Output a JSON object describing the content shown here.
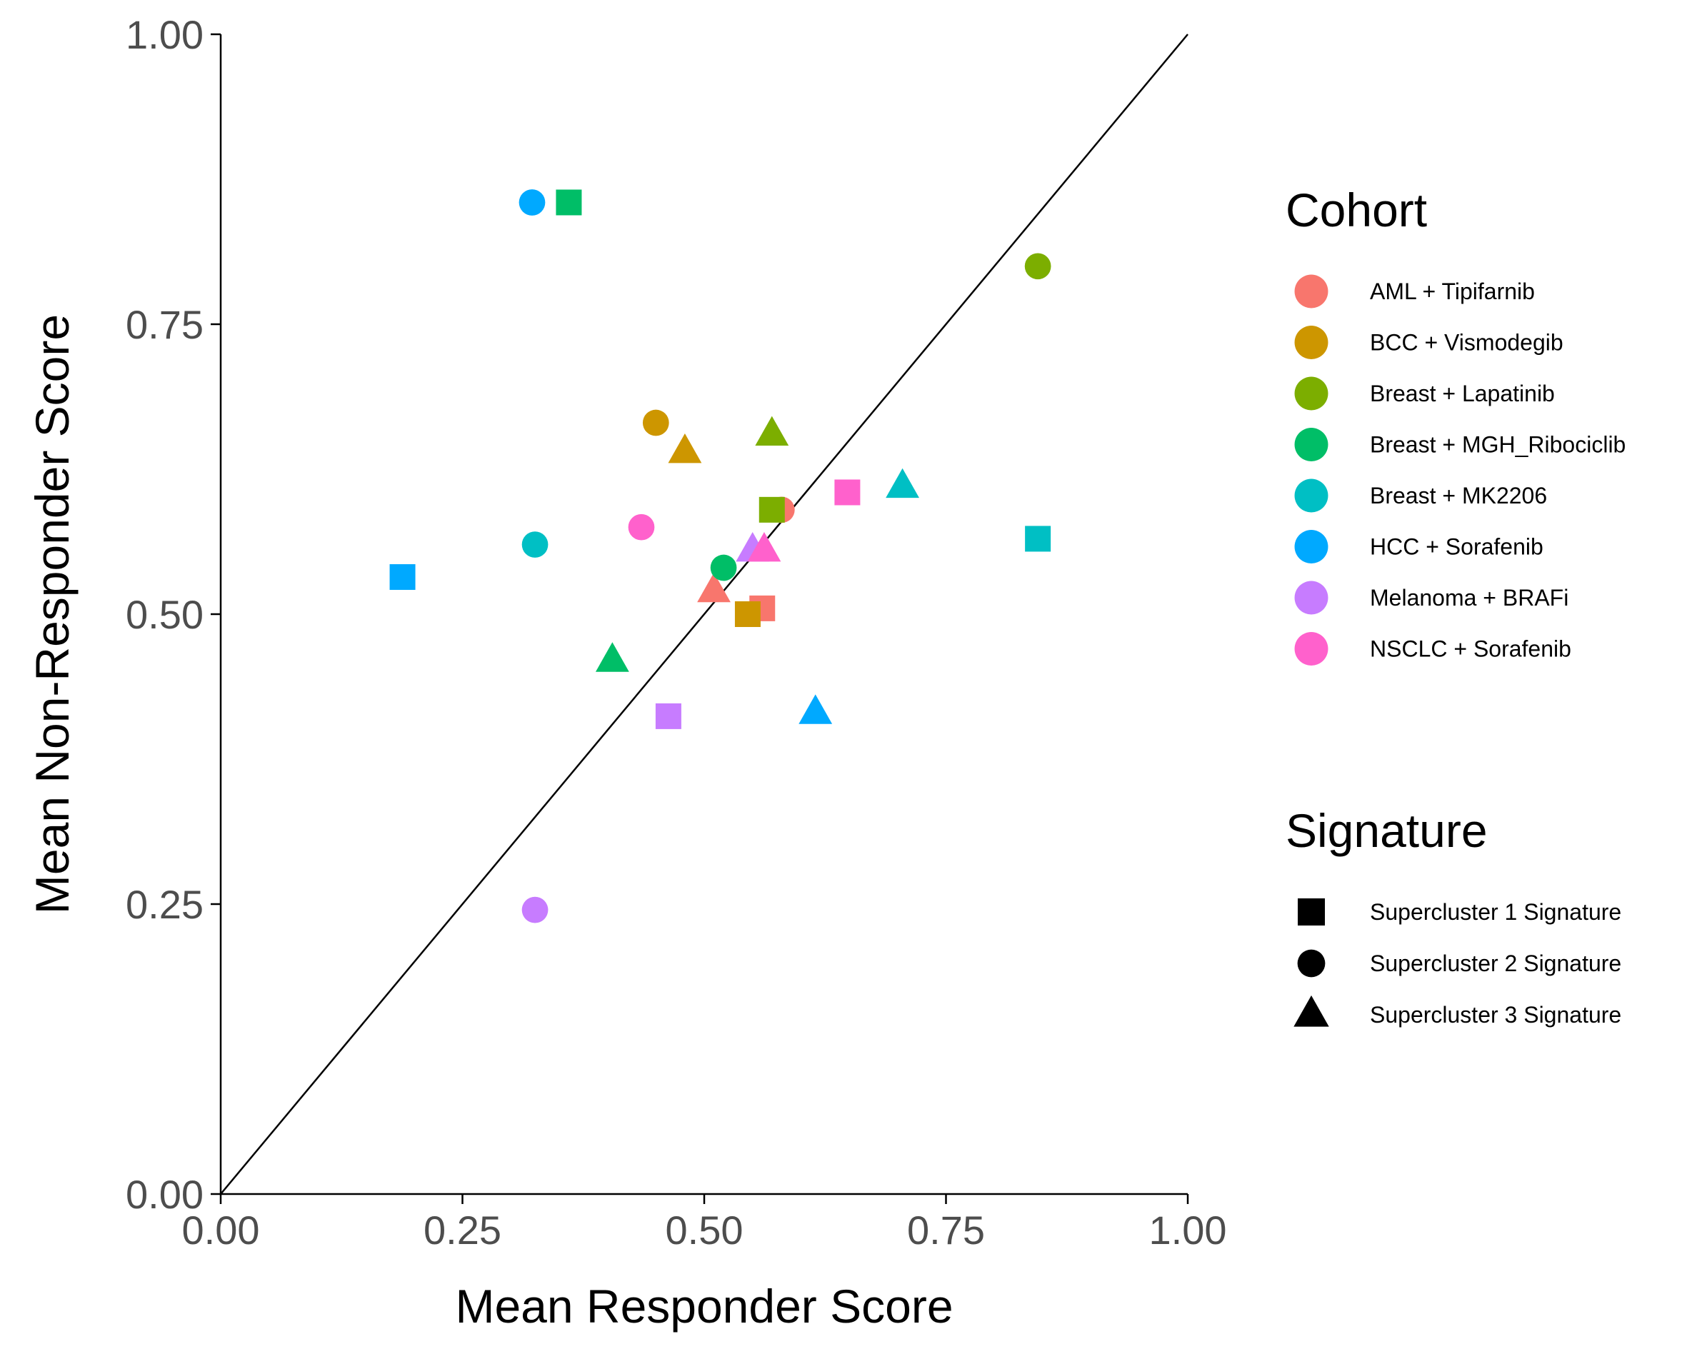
{
  "chart_data": {
    "type": "scatter",
    "xlabel": "Mean Responder Score",
    "ylabel": "Mean Non-Responder Score",
    "xlim": [
      0,
      1
    ],
    "ylim": [
      0,
      1
    ],
    "x_ticks": [
      "0.00",
      "0.25",
      "0.50",
      "0.75",
      "1.00"
    ],
    "y_ticks": [
      "0.00",
      "0.25",
      "0.50",
      "0.75",
      "1.00"
    ],
    "reference_line": "y = x",
    "grid": false,
    "legend_position": "right",
    "cohort_legend": {
      "title": "Cohort",
      "entries": [
        {
          "name": "AML + Tipifarnib",
          "color": "#F8766D"
        },
        {
          "name": "BCC + Vismodegib",
          "color": "#CD9600"
        },
        {
          "name": "Breast + Lapatinib",
          "color": "#7CAE00"
        },
        {
          "name": "Breast + MGH_Ribociclib",
          "color": "#00BE67"
        },
        {
          "name": "Breast + MK2206",
          "color": "#00BFC4"
        },
        {
          "name": "HCC + Sorafenib",
          "color": "#00A9FF"
        },
        {
          "name": "Melanoma + BRAFi",
          "color": "#C77CFF"
        },
        {
          "name": "NSCLC + Sorafenib",
          "color": "#FF61CC"
        }
      ]
    },
    "signature_legend": {
      "title": "Signature",
      "entries": [
        {
          "name": "Supercluster 1 Signature",
          "shape": "square"
        },
        {
          "name": "Supercluster 2 Signature",
          "shape": "circle"
        },
        {
          "name": "Supercluster 3 Signature",
          "shape": "triangle"
        }
      ]
    },
    "points": [
      {
        "cohort": "AML + Tipifarnib",
        "signature": "Supercluster 2 Signature",
        "x": 0.58,
        "y": 0.59
      },
      {
        "cohort": "AML + Tipifarnib",
        "signature": "Supercluster 3 Signature",
        "x": 0.51,
        "y": 0.52
      },
      {
        "cohort": "AML + Tipifarnib",
        "signature": "Supercluster 1 Signature",
        "x": 0.56,
        "y": 0.505
      },
      {
        "cohort": "BCC + Vismodegib",
        "signature": "Supercluster 2 Signature",
        "x": 0.45,
        "y": 0.665
      },
      {
        "cohort": "BCC + Vismodegib",
        "signature": "Supercluster 3 Signature",
        "x": 0.48,
        "y": 0.64
      },
      {
        "cohort": "BCC + Vismodegib",
        "signature": "Supercluster 1 Signature",
        "x": 0.545,
        "y": 0.5
      },
      {
        "cohort": "Breast + Lapatinib",
        "signature": "Supercluster 2 Signature",
        "x": 0.845,
        "y": 0.8
      },
      {
        "cohort": "Breast + Lapatinib",
        "signature": "Supercluster 3 Signature",
        "x": 0.57,
        "y": 0.655
      },
      {
        "cohort": "Breast + Lapatinib",
        "signature": "Supercluster 1 Signature",
        "x": 0.57,
        "y": 0.59
      },
      {
        "cohort": "Breast + MGH_Ribociclib",
        "signature": "Supercluster 1 Signature",
        "x": 0.36,
        "y": 0.855
      },
      {
        "cohort": "Breast + MGH_Ribociclib",
        "signature": "Supercluster 2 Signature",
        "x": 0.52,
        "y": 0.54
      },
      {
        "cohort": "Breast + MGH_Ribociclib",
        "signature": "Supercluster 3 Signature",
        "x": 0.405,
        "y": 0.46
      },
      {
        "cohort": "Breast + MK2206",
        "signature": "Supercluster 2 Signature",
        "x": 0.325,
        "y": 0.56
      },
      {
        "cohort": "Breast + MK2206",
        "signature": "Supercluster 3 Signature",
        "x": 0.705,
        "y": 0.61
      },
      {
        "cohort": "Breast + MK2206",
        "signature": "Supercluster 1 Signature",
        "x": 0.845,
        "y": 0.565
      },
      {
        "cohort": "HCC + Sorafenib",
        "signature": "Supercluster 2 Signature",
        "x": 0.322,
        "y": 0.855
      },
      {
        "cohort": "HCC + Sorafenib",
        "signature": "Supercluster 1 Signature",
        "x": 0.188,
        "y": 0.532
      },
      {
        "cohort": "HCC + Sorafenib",
        "signature": "Supercluster 3 Signature",
        "x": 0.615,
        "y": 0.415
      },
      {
        "cohort": "Melanoma + BRAFi",
        "signature": "Supercluster 3 Signature",
        "x": 0.55,
        "y": 0.555
      },
      {
        "cohort": "Melanoma + BRAFi",
        "signature": "Supercluster 1 Signature",
        "x": 0.463,
        "y": 0.412
      },
      {
        "cohort": "Melanoma + BRAFi",
        "signature": "Supercluster 2 Signature",
        "x": 0.325,
        "y": 0.245
      },
      {
        "cohort": "NSCLC + Sorafenib",
        "signature": "Supercluster 2 Signature",
        "x": 0.435,
        "y": 0.575
      },
      {
        "cohort": "NSCLC + Sorafenib",
        "signature": "Supercluster 1 Signature",
        "x": 0.648,
        "y": 0.605
      },
      {
        "cohort": "NSCLC + Sorafenib",
        "signature": "Supercluster 3 Signature",
        "x": 0.562,
        "y": 0.555
      }
    ]
  }
}
